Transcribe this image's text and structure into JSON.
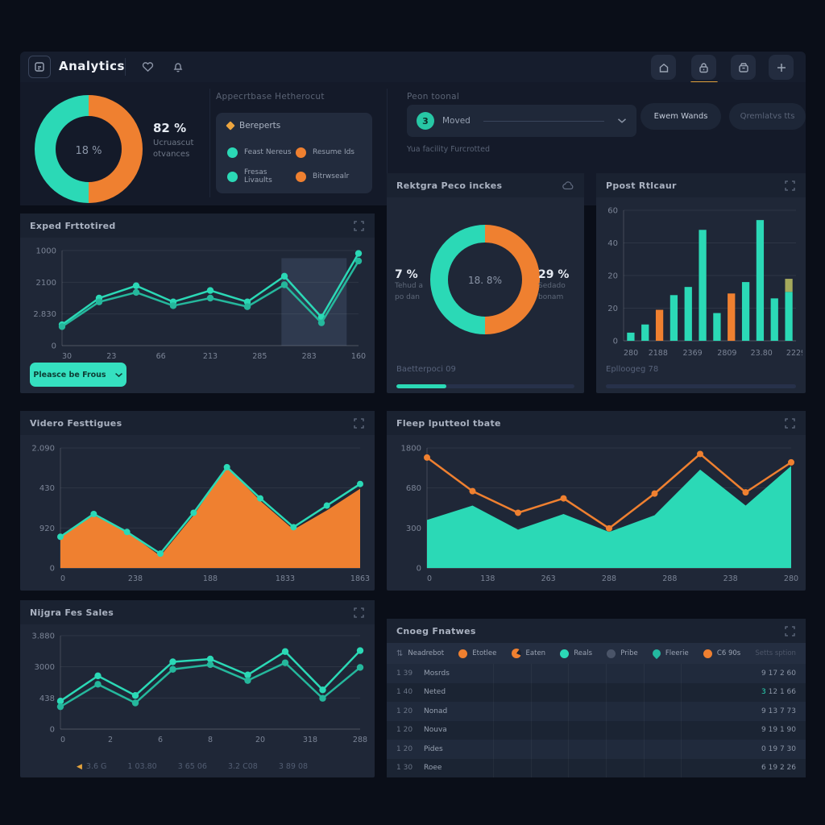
{
  "colors": {
    "teal": "#2bd9b6",
    "teal2": "#25b79c",
    "orange": "#ef8030",
    "olive": "#a5a95c",
    "grid": "rgba(255,255,255,0.07)",
    "axis": "rgba(255,255,255,0.16)",
    "label": "#7b8496",
    "shade": "rgba(130,160,205,0.16)"
  },
  "topbar": {
    "title": "Analytics",
    "left_icons": [
      "clipboard-icon",
      "heart-icon",
      "bell-icon"
    ],
    "right_icons": [
      "home-icon",
      "lock-icon",
      "archive-icon",
      "plus-icon"
    ],
    "active_right_icon": "lock-icon"
  },
  "header_row": {
    "donut": {
      "center": "18 %",
      "stat": "82 %",
      "stat_sub1": "Ucruascut",
      "stat_sub2": "otvances"
    },
    "legend_section": {
      "title": "Appecrtbase Hetherocut",
      "card_title": "Bereperts",
      "items": [
        {
          "label": "Feast Nereus",
          "color": "teal"
        },
        {
          "label": "Resume Ids",
          "color": "orange"
        },
        {
          "label": "Fresas Livaults",
          "color": "teal"
        },
        {
          "label": "Bitrwsealr",
          "color": "orange"
        }
      ]
    },
    "filter": {
      "label": "Peon toonal",
      "badge": "3",
      "value": "Moved",
      "hint": "Yua facility Furcrotted"
    },
    "buttons": [
      {
        "label": "Ewem Wands",
        "dim": false
      },
      {
        "label": "Qremlatvs tts",
        "dim": true
      }
    ]
  },
  "panels": {
    "forecast": {
      "title": "Exped Frttotired",
      "button": "Pleasce be Frous"
    },
    "ratio": {
      "title": "Rektgra Peco inckes",
      "left_value": "7 %",
      "left_sub1": "Tehud a",
      "left_sub2": "po dan",
      "right_value": "29 %",
      "right_sub1": "Sedado",
      "right_sub2": "bonam",
      "center": "18. 8%",
      "footer": "Baetterpoci 09",
      "progress": 28
    },
    "bars": {
      "title": "Ppost Rtlcaur",
      "footer": "Eplloogeg 78",
      "progress": 0
    },
    "videos": {
      "title": "Videro Festtigues"
    },
    "rate": {
      "title": "Fleep lputteol tbate"
    },
    "sales": {
      "title": "Nijgra Fes Sales",
      "stats": [
        {
          "label": "3.6 G",
          "marker": true
        },
        {
          "label": "1 03.80",
          "marker": false
        },
        {
          "label": "3 65 06",
          "marker": false
        },
        {
          "label": "3.2 C08",
          "marker": false
        },
        {
          "label": "3 89 08",
          "marker": false
        }
      ]
    },
    "table": {
      "title": "Cnoeg Fnatwes",
      "legend": [
        {
          "label": "Neadrebot",
          "icon": "sort"
        },
        {
          "label": "Etotlee",
          "icon": "dot-orange"
        },
        {
          "label": "Eaten",
          "icon": "pac-orange"
        },
        {
          "label": "Reals",
          "icon": "dot-teal"
        },
        {
          "label": "Pribe",
          "icon": "dot-gray"
        },
        {
          "label": "Fleerie",
          "icon": "drop-teal"
        },
        {
          "label": "C6 90s",
          "icon": "dot-orange"
        }
      ],
      "legend_right": "Setts sption",
      "rows": [
        {
          "id": "1 39",
          "name": "Mosrds",
          "lead": "9",
          "rest": "17 2 60",
          "accent": false
        },
        {
          "id": "1 40",
          "name": "Neted",
          "lead": "3",
          "rest": "12 1 66",
          "accent": true
        },
        {
          "id": "1 20",
          "name": "Nonad",
          "lead": "9",
          "rest": "13 7 73",
          "accent": false
        },
        {
          "id": "1 20",
          "name": "Nouva",
          "lead": "9",
          "rest": "19 1 90",
          "accent": false
        },
        {
          "id": "1 20",
          "name": "Pides",
          "lead": "0",
          "rest": "19 7 30",
          "accent": false
        },
        {
          "id": "1 30",
          "name": "Roee",
          "lead": "6",
          "rest": "19 2 26",
          "accent": false
        }
      ]
    }
  },
  "chart_data": [
    {
      "type": "pie",
      "title": "overview donut",
      "values": [
        50,
        50
      ],
      "colors": [
        "teal",
        "orange"
      ],
      "center_label": "18 %",
      "side_label": "82 %"
    },
    {
      "type": "line",
      "title": "Exped Frttotired",
      "ylabels": [
        "1000",
        "2100",
        "2.830",
        "0"
      ],
      "xlabels": [
        "30",
        "23",
        "66",
        "213",
        "285",
        "283",
        "160"
      ],
      "ylim": [
        0,
        100
      ],
      "series": [
        {
          "name": "primary",
          "color": "teal",
          "values": [
            22,
            50,
            63,
            46,
            58,
            46,
            73,
            30,
            97
          ]
        },
        {
          "name": "secondary",
          "color": "teal2",
          "values": [
            20,
            46,
            56,
            42,
            50,
            41,
            64,
            24,
            89
          ]
        }
      ],
      "shade": {
        "from": 0.74,
        "to": 0.96,
        "top": 92
      }
    },
    {
      "type": "pie",
      "title": "Rektgra Peco inckes",
      "values": [
        50,
        50
      ],
      "colors": [
        "teal",
        "orange"
      ],
      "center_label": "18. 8%",
      "left_label": "7 %",
      "right_label": "29 %"
    },
    {
      "type": "bar",
      "title": "Ppost Rtlcaur",
      "ylabels": [
        "60",
        "40",
        "20",
        "20",
        "0"
      ],
      "xlabels": [
        "280",
        "2188",
        "2369",
        "2809",
        "23.80",
        "2229"
      ],
      "ylim": [
        0,
        80
      ],
      "bars": [
        {
          "v": 5,
          "c": "teal"
        },
        {
          "v": 10,
          "c": "teal"
        },
        {
          "v": 19,
          "c": "orange"
        },
        {
          "v": 28,
          "c": "teal"
        },
        {
          "v": 33,
          "c": "teal"
        },
        {
          "v": 68,
          "c": "teal"
        },
        {
          "v": 17,
          "c": "teal"
        },
        {
          "v": 29,
          "c": "orange"
        },
        {
          "v": 36,
          "c": "teal"
        },
        {
          "v": 74,
          "c": "teal"
        },
        {
          "v": 26,
          "c": "teal"
        },
        {
          "v": 30,
          "c": "teal",
          "cap": 8,
          "capColor": "olive"
        }
      ]
    },
    {
      "type": "area",
      "title": "Videro Festtigues",
      "ylabels": [
        "2.090",
        "430",
        "920",
        "0"
      ],
      "xlabels": [
        "0",
        "238",
        "188",
        "1833",
        "1863"
      ],
      "ylim": [
        0,
        100
      ],
      "fill": "orange",
      "line": "teal",
      "dots": "teal",
      "area_values": [
        26,
        44,
        30,
        10,
        44,
        84,
        56,
        32,
        48,
        66
      ],
      "line_values": [
        26,
        45,
        30,
        12,
        46,
        84,
        58,
        34,
        52,
        70
      ]
    },
    {
      "type": "area",
      "title": "Fleep lputteol tbate",
      "ylabels": [
        "1800",
        "680",
        "300",
        "0"
      ],
      "xlabels": [
        "0",
        "138",
        "263",
        "288",
        "288",
        "238",
        "280"
      ],
      "ylim": [
        0,
        100
      ],
      "fill": "teal",
      "line": "orange",
      "dots": "orange",
      "area_values": [
        40,
        52,
        32,
        45,
        30,
        44,
        82,
        52,
        85
      ],
      "line_values": [
        92,
        64,
        46,
        58,
        33,
        62,
        95,
        63,
        88
      ]
    },
    {
      "type": "line",
      "title": "Nijgra Fes Sales",
      "ylabels": [
        "3.880",
        "3000",
        "438",
        "0"
      ],
      "xlabels": [
        "0",
        "2",
        "6",
        "8",
        "20",
        "318",
        "288"
      ],
      "ylim": [
        0,
        100
      ],
      "series": [
        {
          "name": "upper",
          "color": "teal",
          "values": [
            30,
            57,
            36,
            72,
            75,
            58,
            83,
            42,
            84
          ]
        },
        {
          "name": "lower",
          "color": "teal2",
          "values": [
            24,
            48,
            28,
            64,
            69,
            52,
            71,
            33,
            66
          ]
        }
      ]
    }
  ]
}
